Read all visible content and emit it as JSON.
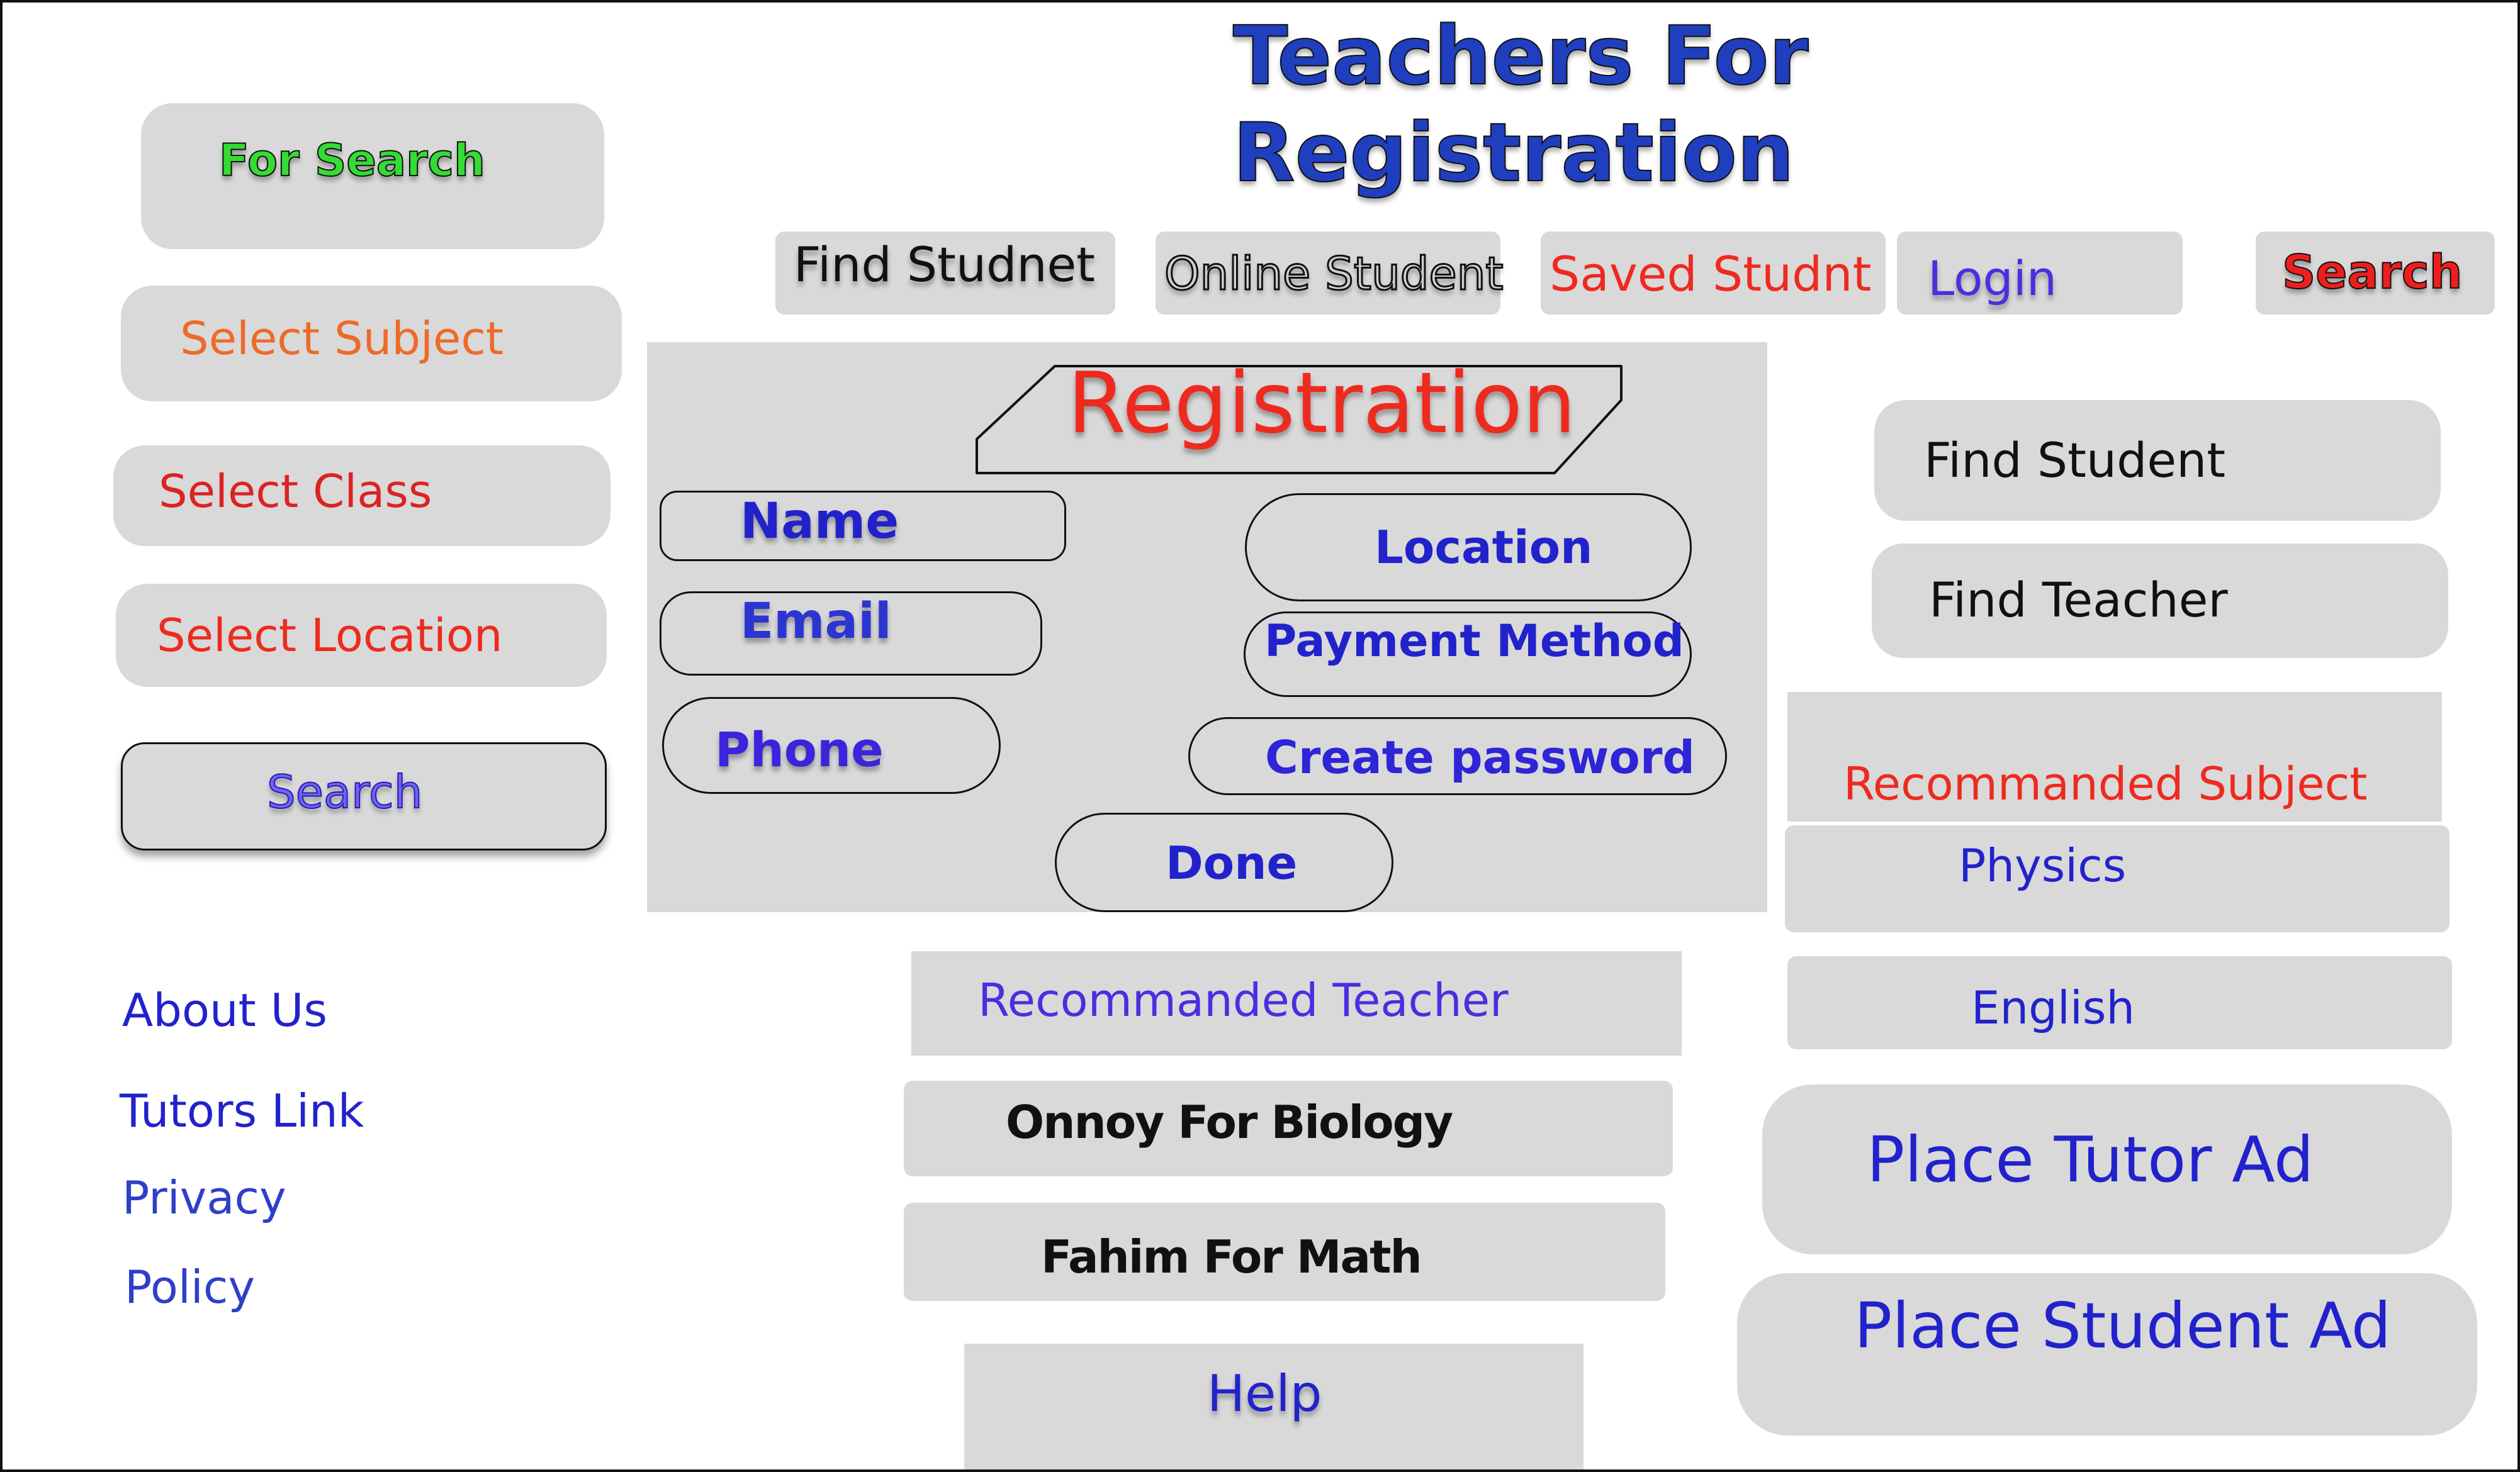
{
  "header": {
    "title_line1": "Teachers For",
    "title_line2": "Registration"
  },
  "nav": {
    "find_studnet": "Find Studnet",
    "online_student": "Online Student",
    "saved_studnt": "Saved Studnt",
    "login": "Login",
    "search": "Search"
  },
  "sidebar": {
    "for_search": "For Search",
    "select_subject": "Select Subject",
    "select_class": "Select Class",
    "select_location": "Select Location",
    "search_button": "Search"
  },
  "registration": {
    "title": "Registration",
    "name": "Name",
    "email": "Email",
    "phone": "Phone",
    "location": "Location",
    "payment_method": "Payment Method",
    "create_password": "Create password",
    "done": "Done"
  },
  "right": {
    "find_student": "Find Student",
    "find_teacher": "Find Teacher",
    "recommended_subject": "Recommanded Subject",
    "subjects": [
      "Physics",
      "English"
    ],
    "place_tutor_ad": "Place Tutor Ad",
    "place_student_ad": "Place Student Ad"
  },
  "teachers": {
    "heading": "Recommanded Teacher",
    "items": [
      "Onnoy For Biology",
      "Fahim For Math"
    ]
  },
  "footer": {
    "links": [
      "About Us",
      "Tutors Link",
      "Privacy",
      "Policy"
    ],
    "help": "Help"
  },
  "colors": {
    "panel": "#d9d9d9",
    "blue": "#2222cc",
    "red": "#ee2a1e",
    "orange": "#ee6a2a",
    "green": "#33cc33"
  }
}
